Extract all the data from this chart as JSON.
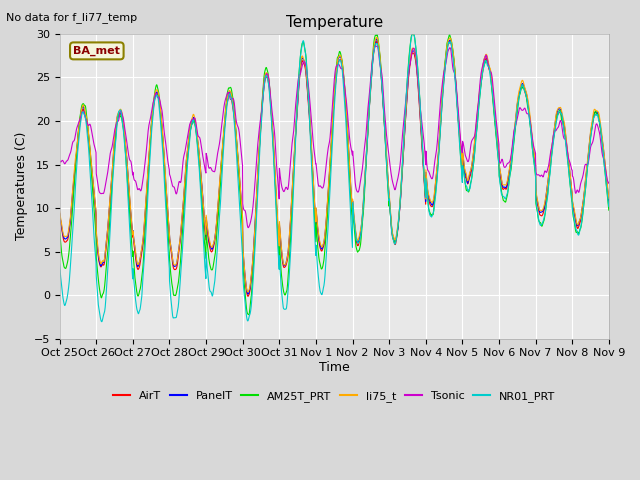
{
  "title": "Temperature",
  "ylabel": "Temperatures (C)",
  "xlabel": "Time",
  "ylim": [
    -5,
    30
  ],
  "fig_bg_color": "#d8d8d8",
  "plot_bg_color": "#e8e8e8",
  "grid_color": "white",
  "note_text": "No data for f_li77_temp",
  "legend_label_text": "BA_met",
  "xtick_labels": [
    "Oct 25",
    "Oct 26",
    "Oct 27",
    "Oct 28",
    "Oct 29",
    "Oct 30",
    "Oct 31",
    "Nov 1",
    "Nov 2",
    "Nov 3",
    "Nov 4",
    "Nov 5",
    "Nov 6",
    "Nov 7",
    "Nov 8",
    "Nov 9"
  ],
  "series": [
    {
      "name": "AirT",
      "color": "#ff0000"
    },
    {
      "name": "PanelT",
      "color": "#0000ff"
    },
    {
      "name": "AM25T_PRT",
      "color": "#00dd00"
    },
    {
      "name": "li75_t",
      "color": "#ffaa00"
    },
    {
      "name": "Tsonic",
      "color": "#cc00cc"
    },
    {
      "name": "NR01_PRT",
      "color": "#00cccc"
    }
  ],
  "num_days": 15,
  "pts_per_day": 144
}
